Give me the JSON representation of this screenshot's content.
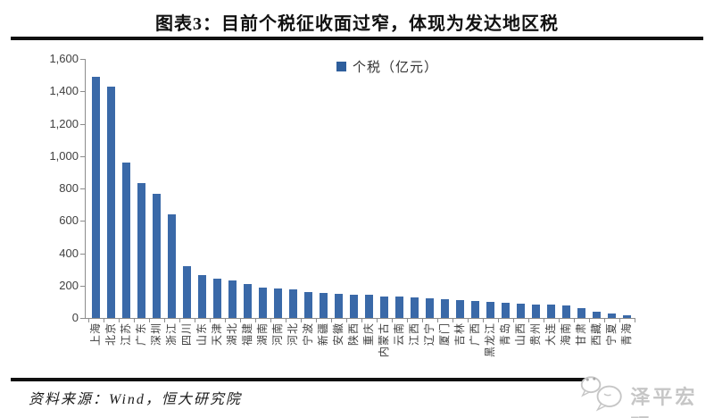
{
  "title": "图表3：目前个税征收面过窄，体现为发达地区税",
  "source": "资料来源：Wind，恒大研究院",
  "watermark": "泽平宏观",
  "colors": {
    "bar": "#3A69A8",
    "legend_swatch": "#2E5E9C",
    "axis": "#8C8C8C",
    "watermark": "#C6C6C6"
  },
  "chart_data": {
    "type": "bar",
    "title": "图表3：目前个税征收面过窄，体现为发达地区税",
    "legend": "个税（亿元）",
    "legend_position": "top-center",
    "unit": "亿元",
    "ylim": [
      0,
      1600
    ],
    "y_tick_interval": 200,
    "y_tick_labels_top_down": [
      "1,600",
      "1,400",
      "1,200",
      "1,000",
      "800",
      "600",
      "400",
      "200",
      "0"
    ],
    "grid": false,
    "categories": [
      "上海",
      "北京",
      "江苏",
      "广东",
      "深圳",
      "浙江",
      "四川",
      "山东",
      "天津",
      "湖北",
      "福建",
      "湖南",
      "河南",
      "河北",
      "宁波",
      "新疆",
      "安徽",
      "陕西",
      "重庆",
      "内蒙古",
      "云南",
      "江西",
      "辽宁",
      "厦门",
      "吉林",
      "广西",
      "黑龙江",
      "青岛",
      "山西",
      "贵州",
      "大连",
      "海南",
      "甘肃",
      "西藏",
      "宁夏",
      "青海"
    ],
    "values": [
      1490,
      1430,
      960,
      835,
      765,
      640,
      320,
      265,
      240,
      230,
      210,
      190,
      182,
      178,
      160,
      152,
      147,
      144,
      141,
      135,
      130,
      127,
      124,
      118,
      113,
      106,
      100,
      95,
      90,
      85,
      82,
      78,
      60,
      38,
      25,
      15
    ]
  }
}
